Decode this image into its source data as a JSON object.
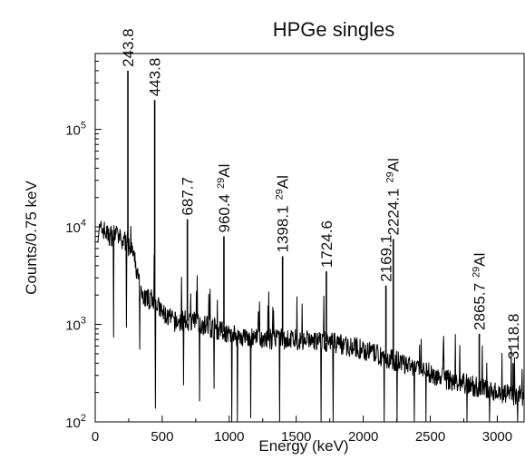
{
  "chart_data": {
    "type": "line",
    "title": "HPGe singles",
    "xlabel": "Energy (keV)",
    "ylabel": "Counts/0.75 keV",
    "xlim": [
      0,
      3200
    ],
    "ylim": [
      100,
      600000
    ],
    "yscale": "log",
    "xticks": [
      0,
      500,
      1000,
      1500,
      2000,
      2500,
      3000
    ],
    "yticks": [
      {
        "value": 100,
        "base": "10",
        "exp": "2"
      },
      {
        "value": 1000,
        "base": "10",
        "exp": "3"
      },
      {
        "value": 10000,
        "base": "10",
        "exp": "4"
      },
      {
        "value": 100000,
        "base": "10",
        "exp": "5"
      }
    ],
    "grid": false,
    "line_color": "#000000",
    "series": [
      {
        "values": [
          [
            20,
            9000
          ],
          [
            60,
            9500
          ],
          [
            100,
            8000
          ],
          [
            150,
            8500
          ],
          [
            200,
            7000
          ],
          [
            240,
            7500
          ],
          [
            243.8,
            400000
          ],
          [
            250,
            6000
          ],
          [
            280,
            5500
          ],
          [
            320,
            3000
          ],
          [
            350,
            2000
          ],
          [
            400,
            1800
          ],
          [
            440,
            1800
          ],
          [
            443.8,
            200000
          ],
          [
            460,
            1600
          ],
          [
            500,
            1300
          ],
          [
            600,
            1050
          ],
          [
            687.7,
            12000
          ],
          [
            700,
            1100
          ],
          [
            800,
            1000
          ],
          [
            900,
            900
          ],
          [
            960.4,
            8000
          ],
          [
            1000,
            800
          ],
          [
            1200,
            700
          ],
          [
            1398.1,
            5000
          ],
          [
            1500,
            700
          ],
          [
            1724.6,
            3500
          ],
          [
            1800,
            650
          ],
          [
            2000,
            550
          ],
          [
            2169.1,
            2500
          ],
          [
            2224.1,
            7500
          ],
          [
            2400,
            350
          ],
          [
            2600,
            280
          ],
          [
            2865.7,
            800
          ],
          [
            3000,
            200
          ],
          [
            3118.8,
            400
          ],
          [
            3200,
            180
          ]
        ]
      }
    ],
    "peaks": [
      {
        "energy": 243.8,
        "counts": 400000,
        "label": "243.8",
        "isotope": ""
      },
      {
        "energy": 443.8,
        "counts": 200000,
        "label": "443.8",
        "isotope": ""
      },
      {
        "energy": 687.7,
        "counts": 12000,
        "label": "687.7",
        "isotope": ""
      },
      {
        "energy": 960.4,
        "counts": 8000,
        "label": "960.4",
        "isotope": "Al",
        "mass": "29"
      },
      {
        "energy": 1398.1,
        "counts": 5000,
        "label": "1398.1",
        "isotope": "Al",
        "mass": "29"
      },
      {
        "energy": 1724.6,
        "counts": 3500,
        "label": "1724.6",
        "isotope": ""
      },
      {
        "energy": 2169.1,
        "counts": 2500,
        "label": "2169.1",
        "isotope": ""
      },
      {
        "energy": 2224.1,
        "counts": 7500,
        "label": "2224.1",
        "isotope": "Al",
        "mass": "29"
      },
      {
        "energy": 2865.7,
        "counts": 800,
        "label": "2865.7",
        "isotope": "Al",
        "mass": "29"
      },
      {
        "energy": 3118.8,
        "counts": 400,
        "label": "3118.8",
        "isotope": ""
      }
    ]
  }
}
